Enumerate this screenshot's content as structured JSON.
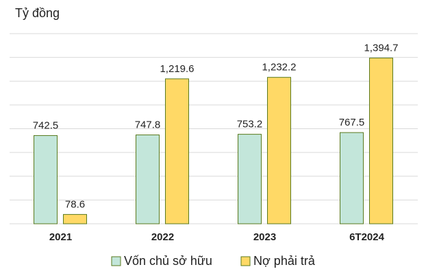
{
  "chart_data": {
    "type": "bar",
    "y_label": "Tỷ đồng",
    "categories": [
      "2021",
      "2022",
      "2023",
      "6T2024"
    ],
    "series": [
      {
        "name": "Vốn chủ sở hữu",
        "color": "#c3e6da",
        "values": [
          742.5,
          747.8,
          753.2,
          767.5
        ],
        "value_labels": [
          "742.5",
          "747.8",
          "753.2",
          "767.5"
        ]
      },
      {
        "name": "Nợ phải trả",
        "color": "#ffd966",
        "values": [
          78.6,
          1219.6,
          1232.2,
          1394.7
        ],
        "value_labels": [
          "78.6",
          "1,219.6",
          "1,232.2",
          "1,394.7"
        ]
      }
    ],
    "ylim": [
      0,
      1600
    ],
    "yticks": [
      0,
      200,
      400,
      600,
      800,
      1000,
      1200,
      1400,
      1600
    ],
    "grid": true,
    "legend": "bottom"
  }
}
